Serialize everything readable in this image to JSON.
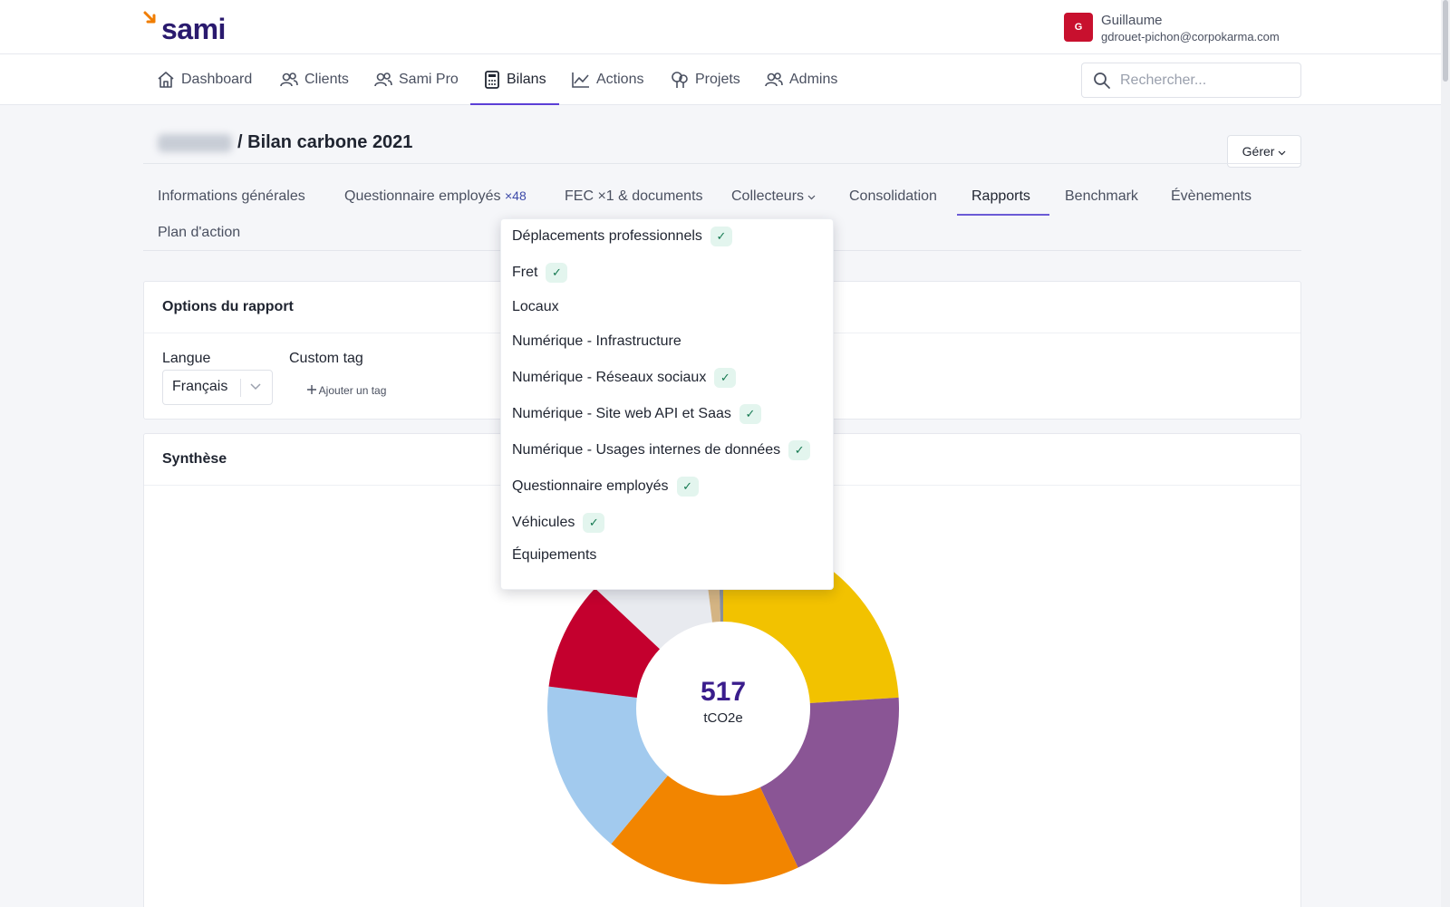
{
  "app": {
    "logo": "sami"
  },
  "user": {
    "initial": "G",
    "name": "Guillaume",
    "email": "gdrouet-pichon@corpokarma.com"
  },
  "nav": {
    "items": [
      {
        "label": "Dashboard",
        "icon": "home-icon"
      },
      {
        "label": "Clients",
        "icon": "users-icon"
      },
      {
        "label": "Sami Pro",
        "icon": "users-icon"
      },
      {
        "label": "Bilans",
        "icon": "calculator-icon"
      },
      {
        "label": "Actions",
        "icon": "chart-line-icon"
      },
      {
        "label": "Projets",
        "icon": "trees-icon"
      },
      {
        "label": "Admins",
        "icon": "users-icon"
      }
    ],
    "active": "Bilans"
  },
  "search": {
    "placeholder": "Rechercher..."
  },
  "breadcrumb": {
    "separator": "/",
    "title": "Bilan carbone 2021"
  },
  "manage_button": "Gérer",
  "subtabs": [
    {
      "label": "Informations générales"
    },
    {
      "label": "Questionnaire employés",
      "count": "×48"
    },
    {
      "label": "FEC ×1 & documents"
    },
    {
      "label": "Collecteurs"
    },
    {
      "label": "Consolidation"
    },
    {
      "label": "Rapports"
    },
    {
      "label": "Benchmark"
    },
    {
      "label": "Évènements"
    },
    {
      "label": "Plan d'action"
    }
  ],
  "active_subtab": "Rapports",
  "report_options": {
    "title": "Options du rapport",
    "language_label": "Langue",
    "language_value": "Français",
    "custom_tag_label": "Custom tag",
    "add_tag": "Ajouter un tag"
  },
  "synthese": {
    "title": "Synthèse",
    "total": "517",
    "unit": "tCO2e"
  },
  "collecteurs_menu": [
    {
      "label": "Déplacements professionnels",
      "checked": true
    },
    {
      "label": "Fret",
      "checked": true
    },
    {
      "label": "Locaux",
      "checked": false
    },
    {
      "label": "Numérique - Infrastructure",
      "checked": false
    },
    {
      "label": "Numérique - Réseaux sociaux",
      "checked": true
    },
    {
      "label": "Numérique - Site web API et Saas",
      "checked": true
    },
    {
      "label": "Numérique - Usages internes de données",
      "checked": true
    },
    {
      "label": "Questionnaire employés",
      "checked": true
    },
    {
      "label": "Véhicules",
      "checked": true
    },
    {
      "label": "Équipements",
      "checked": false
    }
  ],
  "colors": {
    "accent": "#5b3fd6",
    "brand_dark": "#2a1a6e",
    "brand_orange": "#f07d00",
    "avatar": "#c8102e"
  },
  "chart_data": {
    "type": "pie",
    "title": "Synthèse",
    "center_value": 517,
    "center_unit": "tCO2e",
    "series": [
      {
        "name": "segment-yellow",
        "color": "#f2c200",
        "value": 24
      },
      {
        "name": "segment-purple",
        "color": "#8a5595",
        "value": 19
      },
      {
        "name": "segment-orange",
        "color": "#f28500",
        "value": 18
      },
      {
        "name": "segment-lightblue",
        "color": "#a2caee",
        "value": 16
      },
      {
        "name": "segment-red",
        "color": "#c4002e",
        "value": 10
      },
      {
        "name": "segment-hidden",
        "color": "#e8eaef",
        "value": 11
      },
      {
        "name": "segment-tan",
        "color": "#d4b483",
        "value": 1.5
      },
      {
        "name": "segment-gray",
        "color": "#8a8f98",
        "value": 0.5
      }
    ]
  }
}
